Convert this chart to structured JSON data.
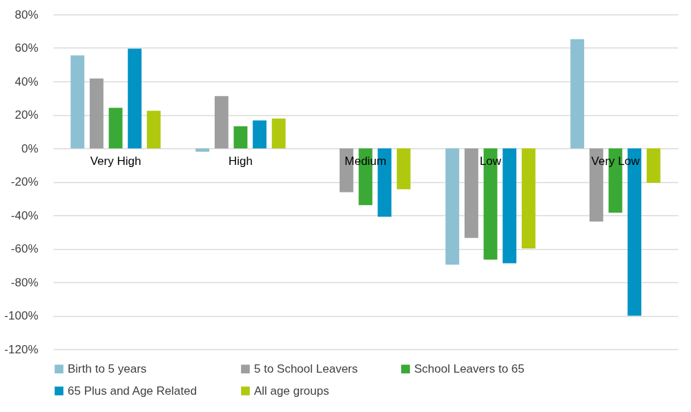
{
  "chart_data": {
    "type": "bar",
    "categories": [
      "Very High",
      "High",
      "Medium",
      "Low",
      "Very Low"
    ],
    "series": [
      {
        "name": "Birth to 5 years",
        "color": "#8cc0d2",
        "values": [
          55.6,
          -2,
          null,
          -69.5,
          65.3
        ]
      },
      {
        "name": "5 to School Leavers",
        "color": "#9e9e9e",
        "values": [
          41.8,
          31.2,
          -26.2,
          -53.5,
          -43.7
        ]
      },
      {
        "name": "School Leavers to 65",
        "color": "#3ba935",
        "values": [
          24.2,
          13.2,
          -33.9,
          -66.5,
          -38.5
        ]
      },
      {
        "name": "65 Plus and Age Related",
        "color": "#0093c4",
        "values": [
          59.6,
          16.7,
          -40.8,
          -68.7,
          -100
        ]
      },
      {
        "name": "All age groups",
        "color": "#b0c90e",
        "values": [
          22.5,
          17.8,
          -24.4,
          -59.8,
          -20.6
        ]
      }
    ],
    "ylim": [
      -120,
      80
    ],
    "yticks": [
      {
        "value": -120,
        "label": "-120%"
      },
      {
        "value": -100,
        "label": "-100%"
      },
      {
        "value": -80,
        "label": "-80%"
      },
      {
        "value": -60,
        "label": "-60%"
      },
      {
        "value": -40,
        "label": "-40%"
      },
      {
        "value": -20,
        "label": "-20%"
      },
      {
        "value": 0,
        "label": "0%"
      },
      {
        "value": 20,
        "label": "20%"
      },
      {
        "value": 40,
        "label": "40%"
      },
      {
        "value": 60,
        "label": "60%"
      },
      {
        "value": 80,
        "label": "80%"
      }
    ],
    "grid": "y",
    "legend": "bottom"
  }
}
